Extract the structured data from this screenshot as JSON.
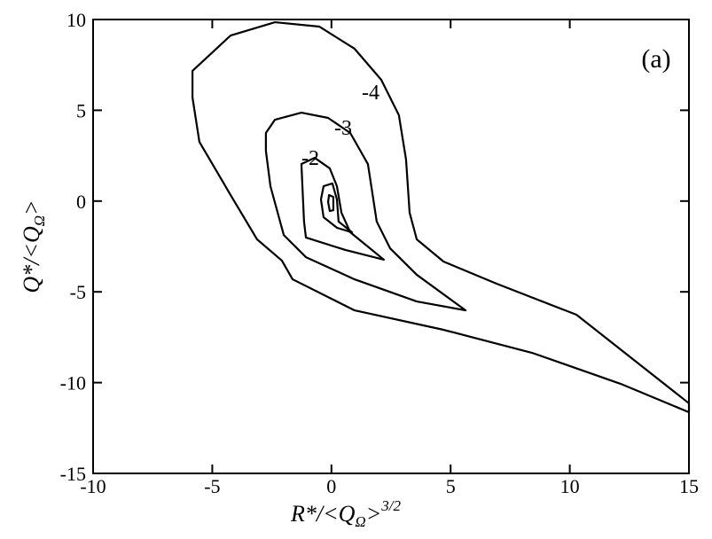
{
  "chart_data": {
    "type": "contour",
    "panel_label": "(a)",
    "xlabel": {
      "main": "R*/<Q",
      "sub": "Ω",
      "end": ">",
      "sup": "3/2"
    },
    "ylabel": {
      "main": "Q*/<Q",
      "sub": "Ω",
      "end": ">"
    },
    "xlim": [
      -10,
      15
    ],
    "ylim": [
      -15,
      10
    ],
    "xticks": [
      -10,
      -5,
      0,
      5,
      10,
      15
    ],
    "yticks": [
      -15,
      -10,
      -5,
      0,
      5,
      10
    ],
    "color": "#000000",
    "contours": [
      {
        "level": -4,
        "x": [
          -5.83,
          -4.23,
          -2.37,
          -0.51,
          0.97,
          2.09,
          2.83,
          3.13,
          3.28,
          3.58,
          4.7,
          6.93,
          10.28,
          15,
          15,
          12.14,
          8.42,
          4.7,
          0.97,
          -1.63,
          -2.08,
          -3.12,
          -4.23,
          -5.54,
          -5.83
        ],
        "y": [
          7.17,
          9.12,
          9.85,
          9.61,
          8.39,
          6.68,
          4.73,
          2.29,
          -0.64,
          -2.11,
          -3.33,
          -4.55,
          -6.26,
          -11.14,
          -11.63,
          -10.07,
          -8.36,
          -7.09,
          -6.02,
          -4.31,
          -3.28,
          -2.11,
          0.33,
          3.26,
          5.7
        ]
      },
      {
        "level": -3,
        "x": [
          -2.75,
          -2.37,
          -1.26,
          -0.14,
          0.79,
          1.53,
          1.9,
          2.46,
          3.58,
          5.63,
          3.58,
          0.97,
          -1.07,
          -2.0,
          -2.56,
          -2.75
        ],
        "y": [
          3.75,
          4.48,
          4.87,
          4.58,
          3.75,
          2.04,
          -1.13,
          -2.6,
          -4.06,
          -6.02,
          -5.53,
          -4.31,
          -3.09,
          -1.87,
          0.82,
          2.77
        ]
      },
      {
        "level": -2,
        "x": [
          -1.26,
          -0.7,
          -0.07,
          0.23,
          0.42,
          0.79,
          2.2,
          0.6,
          -1.07,
          -1.15
        ],
        "y": [
          2.04,
          2.38,
          1.8,
          0.82,
          -0.64,
          -1.72,
          -3.23,
          -2.7,
          -2.01,
          -1.13
        ]
      },
      {
        "x": [
          -0.33,
          0.04,
          0.23,
          0.3,
          0.86,
          0.23,
          -0.33,
          -0.44
        ],
        "y": [
          0.82,
          0.97,
          0.09,
          -1.13,
          -1.72,
          -1.47,
          -0.89,
          0.09
        ]
      },
      {
        "x": [
          -0.1,
          0.08,
          0.08,
          -0.07,
          -0.14
        ],
        "y": [
          0.33,
          0.23,
          -0.5,
          -0.55,
          -0.05
        ]
      }
    ]
  }
}
